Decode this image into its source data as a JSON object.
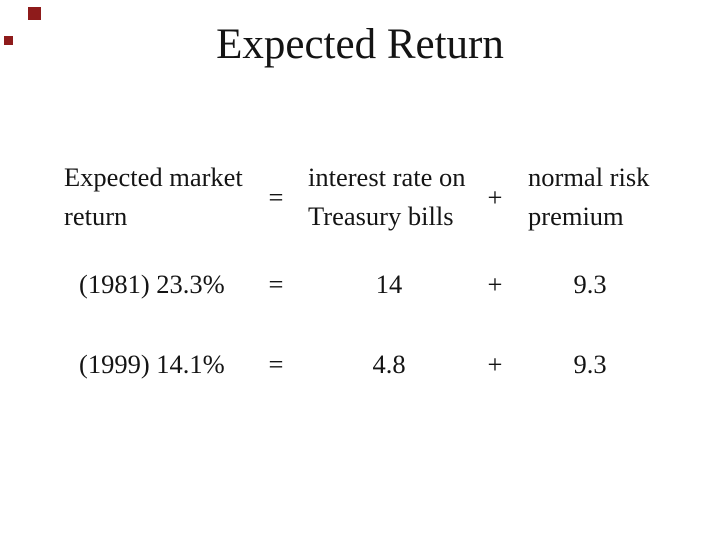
{
  "slide": {
    "title": "Expected Return",
    "decor": {
      "square_color": "#8e1b1b"
    },
    "equation": {
      "operators": {
        "equals": "=",
        "plus": "+"
      },
      "header": {
        "lhs_line1": "Expected market",
        "lhs_line2": "return",
        "mid_line1": "interest rate on",
        "mid_line2": "Treasury bills",
        "rhs_line1": "normal risk",
        "rhs_line2": "premium"
      },
      "rows": [
        {
          "label": "(1981) 23.3%",
          "rate": "14",
          "premium": "9.3"
        },
        {
          "label": "(1999) 14.1%",
          "rate": "4.8",
          "premium": "9.3"
        }
      ]
    }
  }
}
